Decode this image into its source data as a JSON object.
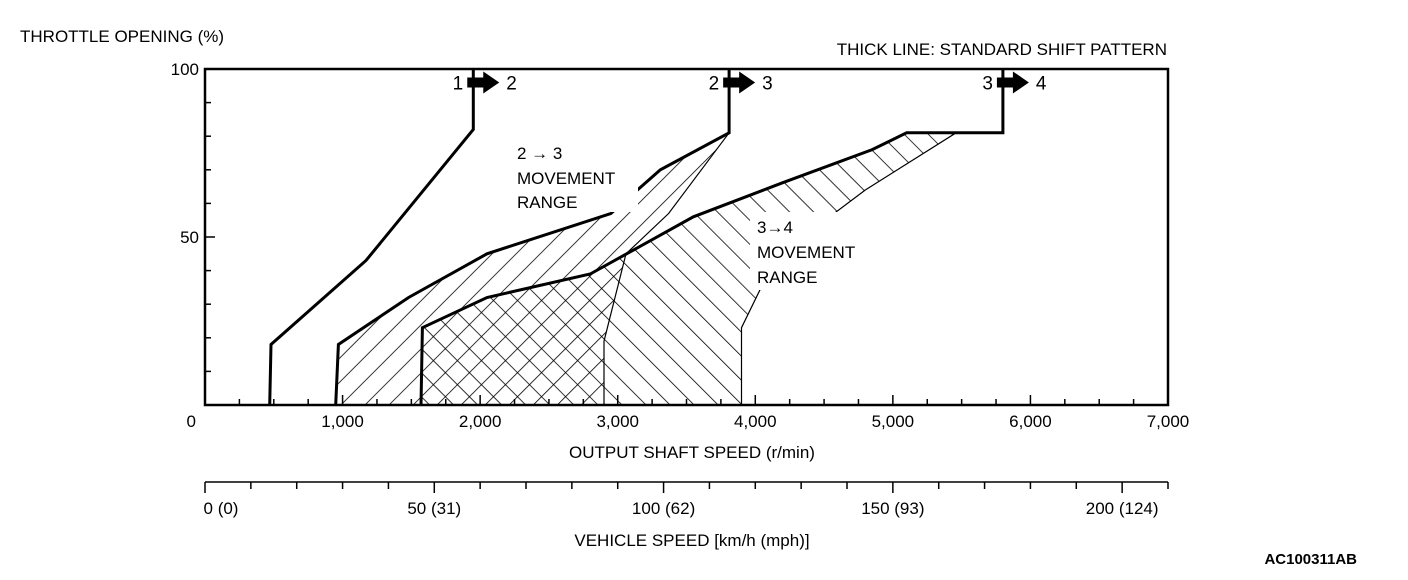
{
  "chart_data": {
    "type": "line",
    "title": "THICK LINE: STANDARD SHIFT PATTERN",
    "ylabel": "THROTTLE OPENING (%)",
    "xlabel": "OUTPUT SHAFT SPEED (r/min)",
    "ylim": [
      0,
      100
    ],
    "xlim": [
      0,
      7000
    ],
    "yticks": [
      {
        "value": 0,
        "label": "0"
      },
      {
        "value": 50,
        "label": "50"
      },
      {
        "value": 100,
        "label": "100"
      }
    ],
    "xticks": [
      {
        "value": 0,
        "label": ""
      },
      {
        "value": 1000,
        "label": "1,000"
      },
      {
        "value": 2000,
        "label": "2,000"
      },
      {
        "value": 3000,
        "label": "3,000"
      },
      {
        "value": 4000,
        "label": "4,000"
      },
      {
        "value": 5000,
        "label": "5,000"
      },
      {
        "value": 6000,
        "label": "6,000"
      },
      {
        "value": 7000,
        "label": "7,000"
      }
    ],
    "origin_label": "0",
    "secondary_axis": {
      "label": "VEHICLE SPEED [km/h (mph)]",
      "ticks": [
        {
          "value": 0,
          "label": "0 (0)"
        },
        {
          "value": 50,
          "label": "50 (31)"
        },
        {
          "value": 100,
          "label": "100 (62)"
        },
        {
          "value": 150,
          "label": "150 (93)"
        },
        {
          "value": 200,
          "label": "200 (124)"
        }
      ],
      "minor_step": 10,
      "range": [
        0,
        210
      ]
    },
    "series": [
      {
        "name": "1 → 2",
        "label_from": "1",
        "label_to": "2",
        "points": [
          [
            470,
            0
          ],
          [
            480,
            18
          ],
          [
            1170,
            43
          ],
          [
            1950,
            82
          ],
          [
            1950,
            100
          ]
        ]
      },
      {
        "name": "2 → 3",
        "label_from": "2",
        "label_to": "3",
        "points": [
          [
            950,
            0
          ],
          [
            970,
            18
          ],
          [
            1480,
            32
          ],
          [
            2050,
            45
          ],
          [
            2950,
            57
          ],
          [
            3310,
            70
          ],
          [
            3810,
            81
          ],
          [
            3810,
            100
          ]
        ]
      },
      {
        "name": "3 → 4",
        "label_from": "3",
        "label_to": "4",
        "points": [
          [
            1570,
            0
          ],
          [
            1580,
            23
          ],
          [
            2050,
            32
          ],
          [
            2800,
            39
          ],
          [
            3550,
            56
          ],
          [
            4190,
            66
          ],
          [
            4850,
            76
          ],
          [
            5100,
            81
          ],
          [
            5800,
            81
          ],
          [
            5800,
            100
          ]
        ]
      }
    ],
    "ranges": [
      {
        "name": "2 → 3 MOVEMENT RANGE",
        "hatch": "down-right",
        "points": [
          [
            950,
            0
          ],
          [
            970,
            18
          ],
          [
            1480,
            32
          ],
          [
            2050,
            45
          ],
          [
            2950,
            57
          ],
          [
            3310,
            70
          ],
          [
            3810,
            81
          ],
          [
            3370,
            57
          ],
          [
            3060,
            45
          ],
          [
            2900,
            19
          ],
          [
            2900,
            0
          ]
        ]
      },
      {
        "name": "3 → 4 MOVEMENT RANGE",
        "hatch": "up-right",
        "points": [
          [
            1570,
            0
          ],
          [
            1580,
            23
          ],
          [
            2050,
            32
          ],
          [
            2800,
            39
          ],
          [
            3550,
            56
          ],
          [
            4190,
            66
          ],
          [
            4850,
            76
          ],
          [
            5100,
            81
          ],
          [
            5460,
            81
          ],
          [
            4800,
            64
          ],
          [
            4150,
            44
          ],
          [
            3900,
            23
          ],
          [
            3900,
            0
          ]
        ]
      }
    ],
    "annotations": [
      {
        "id": "range23",
        "lines": [
          "2 → 3",
          "MOVEMENT",
          "RANGE"
        ]
      },
      {
        "id": "range34",
        "lines": [
          "3→4",
          "MOVEMENT",
          "RANGE"
        ]
      }
    ]
  },
  "figure_code": "AC100311AB"
}
